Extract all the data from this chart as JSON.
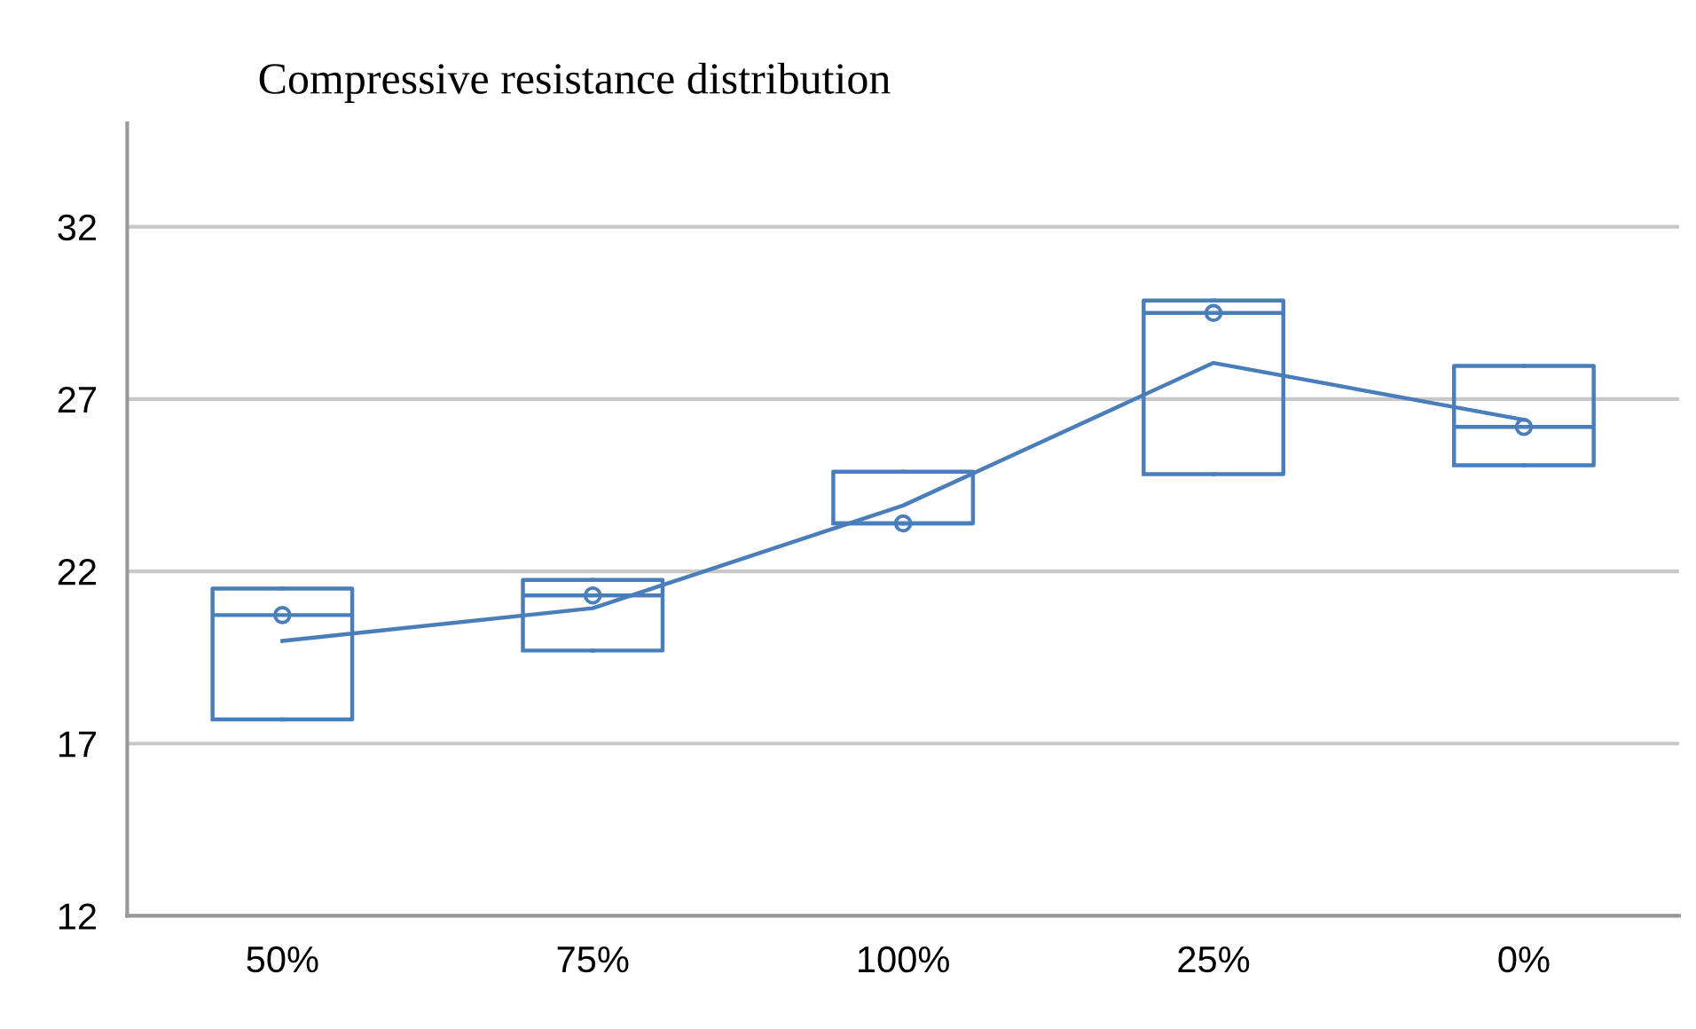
{
  "chart_data": {
    "type": "box",
    "title": "Compressive resistance distribution",
    "categories": [
      "50%",
      "75%",
      "100%",
      "25%",
      "0%"
    ],
    "ylim": [
      12,
      35
    ],
    "yticks": [
      12,
      17,
      22,
      27,
      32
    ],
    "grid": "y",
    "legend": false,
    "series": [
      {
        "color": "#4a7ebb",
        "boxes": [
          {
            "low": 17.7,
            "q1": 17.7,
            "median": 20.73,
            "q3": 21.5,
            "high": 21.5,
            "mean": 20.73
          },
          {
            "low": 19.7,
            "q1": 19.7,
            "median": 21.3,
            "q3": 21.75,
            "high": 21.75,
            "mean": 21.3
          },
          {
            "low": 23.39,
            "q1": 23.39,
            "median": 23.39,
            "q3": 24.89,
            "high": 24.89,
            "mean": 23.39
          },
          {
            "low": 24.82,
            "q1": 24.82,
            "median": 29.5,
            "q3": 29.86,
            "high": 29.86,
            "mean": 29.5
          },
          {
            "low": 25.08,
            "q1": 25.08,
            "median": 26.19,
            "q3": 27.96,
            "high": 27.96,
            "mean": 26.19
          }
        ]
      },
      {
        "type": "line",
        "color": "#4a7ebb",
        "values": [
          19.98,
          20.93,
          23.91,
          28.05,
          26.4
        ]
      }
    ]
  }
}
